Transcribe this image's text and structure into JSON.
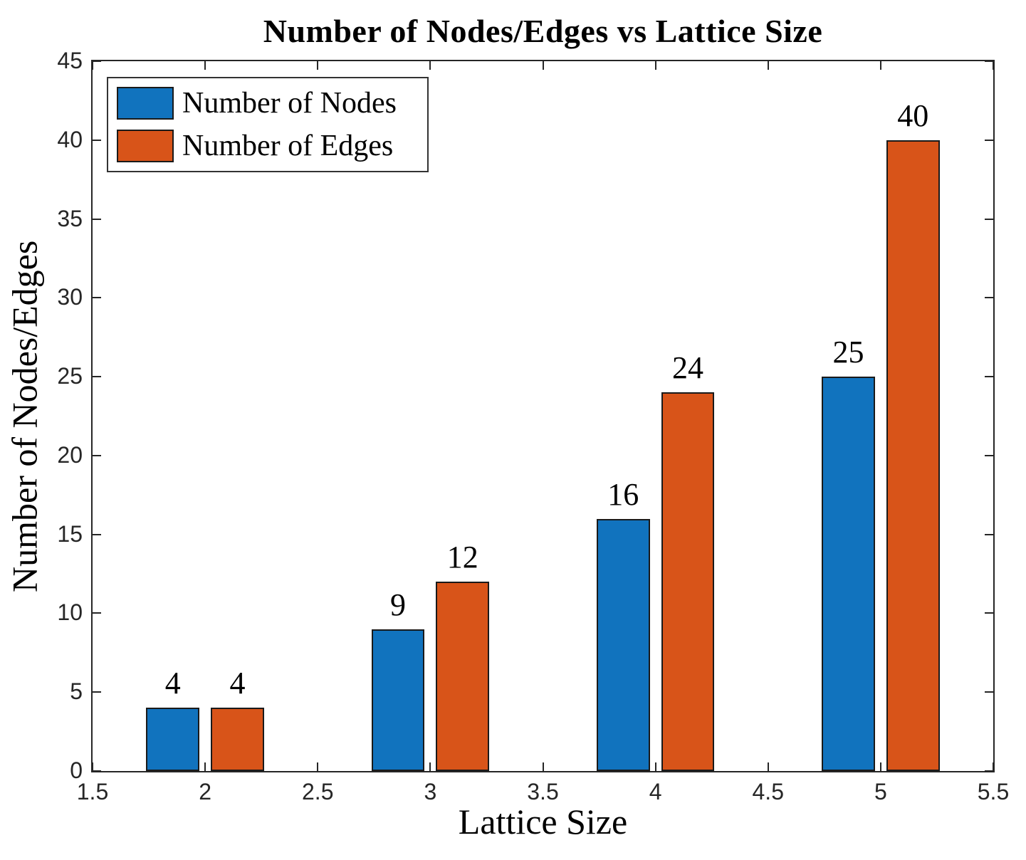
{
  "title": "Number of Nodes/Edges vs Lattice Size",
  "chart_data": {
    "type": "bar",
    "title": "Number of Nodes/Edges vs Lattice Size",
    "xlabel": "Lattice Size",
    "ylabel": "Number of Nodes/Edges",
    "x": [
      2,
      3,
      4,
      5
    ],
    "series": [
      {
        "name": "Number of Nodes",
        "color": "#1173BE",
        "values": [
          4,
          9,
          16,
          25
        ]
      },
      {
        "name": "Number of Edges",
        "color": "#D85419",
        "values": [
          4,
          12,
          24,
          40
        ]
      }
    ],
    "value_labels": [
      "4",
      "4",
      "9",
      "12",
      "16",
      "24",
      "25",
      "40"
    ],
    "xlim": [
      1.5,
      5.5
    ],
    "ylim": [
      0,
      45
    ],
    "xticks": [
      1.5,
      2,
      2.5,
      3,
      3.5,
      4,
      4.5,
      5,
      5.5
    ],
    "yticks": [
      0,
      5,
      10,
      15,
      20,
      25,
      30,
      35,
      40,
      45
    ],
    "bar_width": 0.236,
    "bar_offset": 0.1435,
    "grid": false,
    "legend_position": "top-left",
    "bar_edge_color": "#1a1a1a",
    "axis_color": "#262626"
  },
  "legend": {
    "items": [
      {
        "label": "Number of Nodes",
        "color": "#1173BE"
      },
      {
        "label": "Number of Edges",
        "color": "#D85419"
      }
    ]
  }
}
